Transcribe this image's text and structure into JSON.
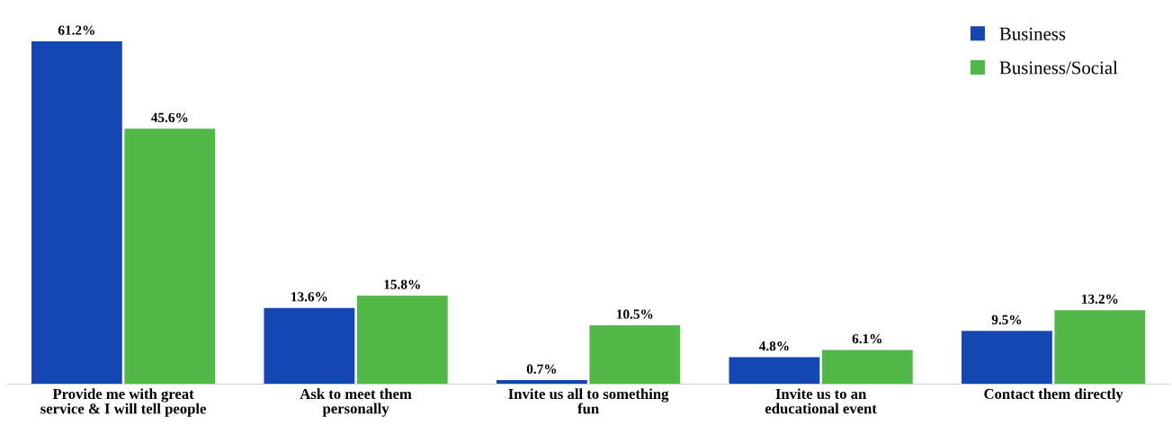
{
  "chart_data": {
    "type": "bar",
    "categories": [
      "Provide me with great\nservice & I will tell people",
      "Ask to meet them\npersonally",
      "Invite us all to something\nfun",
      "Invite us to an\neducational event",
      "Contact them directly"
    ],
    "series": [
      {
        "name": "Business",
        "color": "#1446b4",
        "values": [
          61.2,
          13.6,
          0.7,
          4.8,
          9.5
        ],
        "value_labels": [
          "61.2%",
          "13.6%",
          "0.7%",
          "4.8%",
          "9.5%"
        ]
      },
      {
        "name": "Business/Social",
        "color": "#52b848",
        "values": [
          45.6,
          15.8,
          10.5,
          6.1,
          13.2
        ],
        "value_labels": [
          "45.6%",
          "15.8%",
          "10.5%",
          "6.1%",
          "13.2%"
        ]
      }
    ],
    "legend": "top right",
    "grid": false,
    "tick_labels": "x"
  }
}
